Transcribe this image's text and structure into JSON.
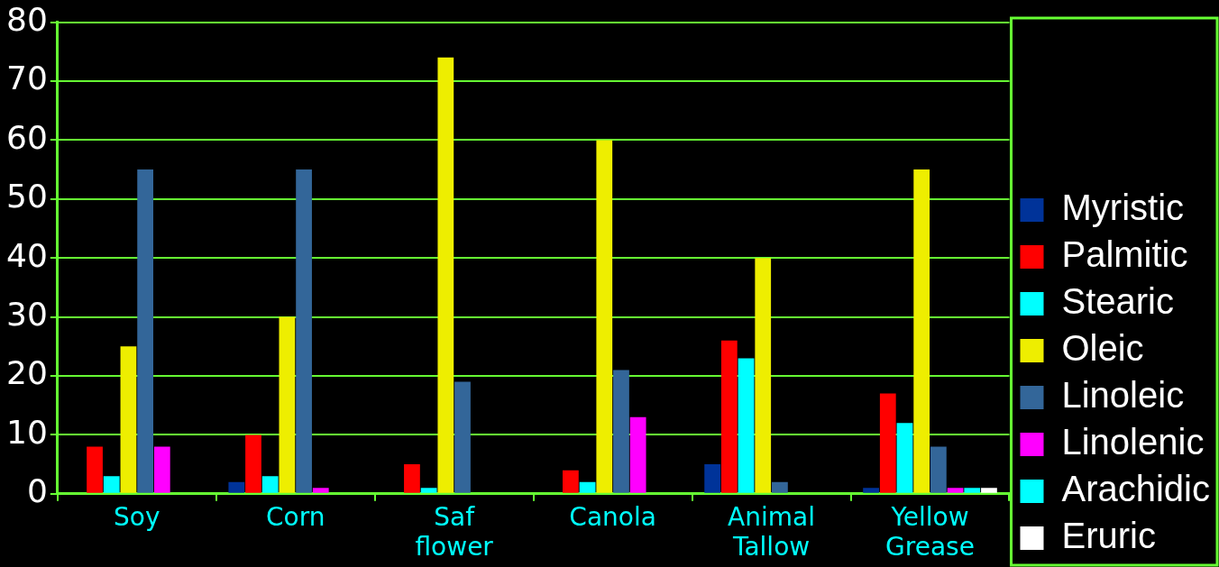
{
  "chart_data": {
    "type": "bar",
    "categories": [
      "Soy",
      "Corn",
      "Saf flower",
      "Canola",
      "Animal Tallow",
      "Yellow Grease"
    ],
    "series": [
      {
        "name": "Myristic",
        "color": "#003399",
        "values": [
          0,
          2,
          0,
          0,
          5,
          1
        ]
      },
      {
        "name": "Palmitic",
        "color": "#ff0000",
        "values": [
          8,
          10,
          5,
          4,
          26,
          17
        ]
      },
      {
        "name": "Stearic",
        "color": "#00ffff",
        "values": [
          3,
          3,
          1,
          2,
          23,
          12
        ]
      },
      {
        "name": "Oleic",
        "color": "#eeee00",
        "values": [
          25,
          30,
          74,
          60,
          40,
          55
        ]
      },
      {
        "name": "Linoleic",
        "color": "#336699",
        "values": [
          55,
          55,
          19,
          21,
          2,
          8
        ]
      },
      {
        "name": "Linolenic",
        "color": "#ff00ff",
        "values": [
          8,
          1,
          0,
          13,
          0,
          1
        ]
      },
      {
        "name": "Arachidic",
        "color": "#00ffff",
        "values": [
          0,
          0,
          0,
          0,
          0,
          1
        ]
      },
      {
        "name": "Eruric",
        "color": "#ffffff",
        "values": [
          0,
          0,
          0,
          0,
          0,
          1
        ]
      }
    ],
    "ylim": [
      0,
      80
    ],
    "yticks": [
      0,
      10,
      20,
      30,
      40,
      50,
      60,
      70,
      80
    ],
    "grid": "y",
    "legend": "right"
  }
}
